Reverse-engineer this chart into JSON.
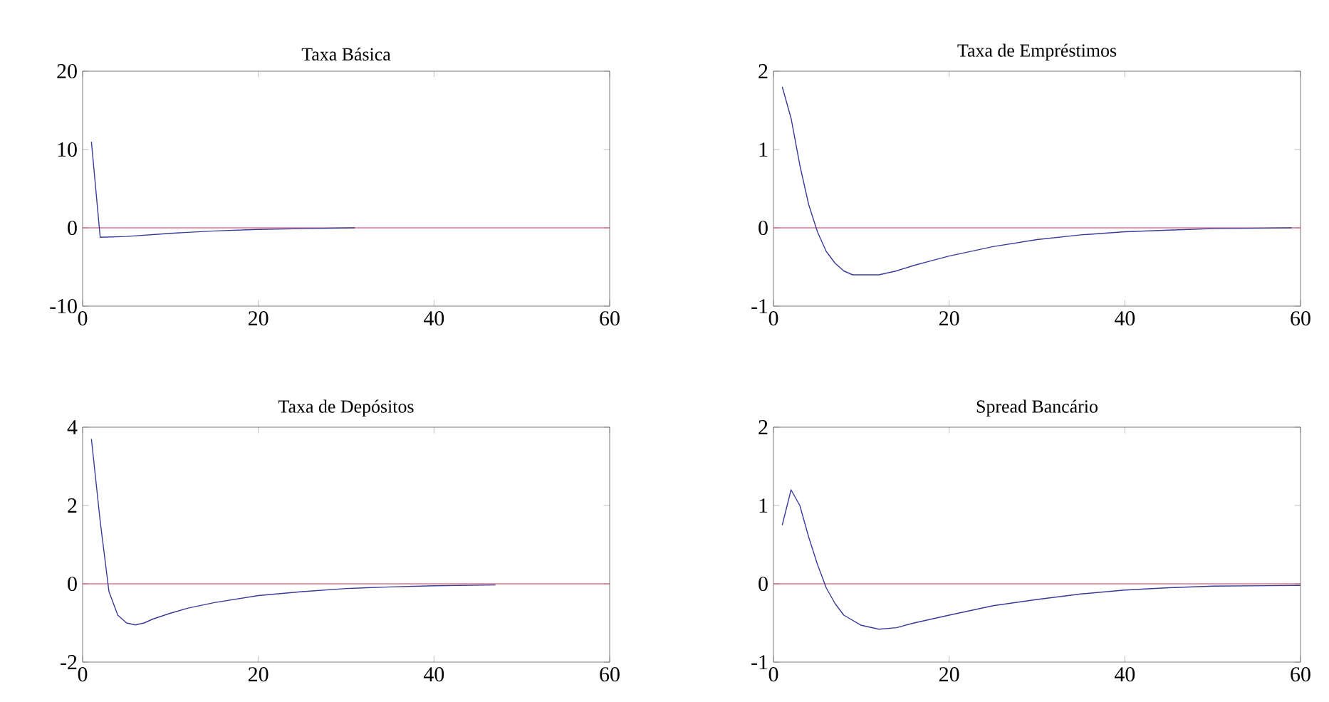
{
  "chart_data": [
    {
      "type": "line",
      "title": "Taxa Básica",
      "xlim": [
        0,
        60
      ],
      "ylim": [
        -10,
        20
      ],
      "xticks": [
        0,
        20,
        40,
        60
      ],
      "yticks": [
        -10,
        0,
        10,
        20
      ],
      "grid": false,
      "x": [
        1,
        2,
        5,
        10,
        15,
        20,
        25,
        31
      ],
      "series": [
        {
          "color": "#3a3a9a",
          "values": [
            11,
            -1.2,
            -1.1,
            -0.7,
            -0.4,
            -0.2,
            -0.1,
            0
          ]
        }
      ],
      "ref_lines": [
        {
          "axis": "y",
          "value": 0,
          "color": "#cc3355"
        }
      ]
    },
    {
      "type": "line",
      "title": "Taxa de Empréstimos",
      "xlim": [
        0,
        60
      ],
      "ylim": [
        -1,
        2
      ],
      "xticks": [
        0,
        20,
        40,
        60
      ],
      "yticks": [
        -1,
        0,
        1,
        2
      ],
      "grid": false,
      "x": [
        1,
        2,
        3,
        4,
        5,
        6,
        7,
        8,
        9,
        10,
        12,
        14,
        16,
        18,
        20,
        25,
        30,
        35,
        40,
        45,
        50,
        59
      ],
      "series": [
        {
          "color": "#3a3a9a",
          "values": [
            1.8,
            1.4,
            0.8,
            0.3,
            -0.05,
            -0.3,
            -0.45,
            -0.55,
            -0.6,
            -0.6,
            -0.6,
            -0.55,
            -0.48,
            -0.42,
            -0.36,
            -0.24,
            -0.15,
            -0.09,
            -0.05,
            -0.03,
            -0.01,
            0
          ]
        }
      ],
      "ref_lines": [
        {
          "axis": "y",
          "value": 0,
          "color": "#cc3355"
        }
      ]
    },
    {
      "type": "line",
      "title": "Taxa de Depósitos",
      "xlim": [
        0,
        60
      ],
      "ylim": [
        -2,
        4
      ],
      "xticks": [
        0,
        20,
        40,
        60
      ],
      "yticks": [
        -2,
        0,
        2,
        4
      ],
      "grid": false,
      "x": [
        1,
        2,
        3,
        4,
        5,
        6,
        7,
        8,
        10,
        12,
        15,
        20,
        25,
        30,
        35,
        40,
        47
      ],
      "series": [
        {
          "color": "#3a3a9a",
          "values": [
            3.7,
            1.6,
            -0.2,
            -0.8,
            -1.0,
            -1.05,
            -1.0,
            -0.9,
            -0.75,
            -0.62,
            -0.48,
            -0.3,
            -0.2,
            -0.12,
            -0.08,
            -0.05,
            -0.03
          ]
        }
      ],
      "ref_lines": [
        {
          "axis": "y",
          "value": 0,
          "color": "#cc3355"
        }
      ]
    },
    {
      "type": "line",
      "title": "Spread Bancário",
      "xlim": [
        0,
        60
      ],
      "ylim": [
        -1,
        2
      ],
      "xticks": [
        0,
        20,
        40,
        60
      ],
      "yticks": [
        -1,
        0,
        1,
        2
      ],
      "grid": false,
      "x": [
        1,
        2,
        3,
        4,
        5,
        6,
        7,
        8,
        10,
        12,
        14,
        16,
        20,
        25,
        30,
        35,
        40,
        45,
        50,
        60
      ],
      "series": [
        {
          "color": "#3a3a9a",
          "values": [
            0.75,
            1.2,
            1.0,
            0.6,
            0.25,
            -0.05,
            -0.25,
            -0.4,
            -0.53,
            -0.58,
            -0.56,
            -0.5,
            -0.4,
            -0.28,
            -0.2,
            -0.13,
            -0.08,
            -0.05,
            -0.03,
            -0.02
          ]
        }
      ],
      "ref_lines": [
        {
          "axis": "y",
          "value": 0,
          "color": "#cc3355"
        }
      ]
    }
  ]
}
